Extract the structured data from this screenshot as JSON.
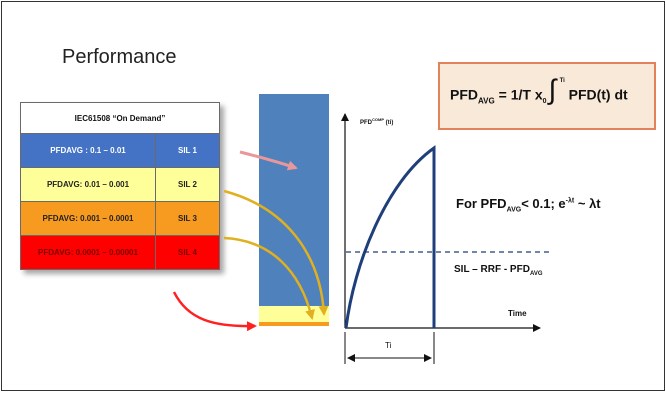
{
  "title": "Performance",
  "table": {
    "header": "IEC61508 “On Demand”",
    "rows": [
      {
        "range": "PFDAVG : 0.1 – 0.01",
        "sil": "SIL 1",
        "color": "#4472c4",
        "text_color": "#ffffff"
      },
      {
        "range": "PFDAVG: 0.01 – 0.001",
        "sil": "SIL 2",
        "color": "#ffff99",
        "text_color": "#222222"
      },
      {
        "range": "PFDAVG: 0.001 – 0.0001",
        "sil": "SIL 3",
        "color": "#f79a20",
        "text_color": "#222222"
      },
      {
        "range": "PFDAVG: 0.0001 – 0.00001",
        "sil": "SIL 4",
        "color": "#ff0000",
        "text_color": "#7a0000"
      }
    ]
  },
  "equation": {
    "lhs": "PFD",
    "lhs_sub": "AVG",
    "mid": "= 1/T x",
    "int_lower": "0",
    "int_upper": "Ti",
    "rhs": "PFD(t) dt"
  },
  "condition": {
    "pre": "For PFD",
    "sub": "AVG",
    "mid": "< 0.1; e",
    "sup": "-λt",
    "post": "~ λt"
  },
  "sil_rrf": {
    "text": "SIL – RRF - PFD",
    "sub": "AVG"
  },
  "graph": {
    "y_label": "PFD",
    "y_label_sup": "COMP",
    "y_label_suffix": " (ti)",
    "x_label": "Time",
    "interval_label": "Ti"
  },
  "colors": {
    "bar_blue": "#4f81bd",
    "bar_yellow": "#ffff99",
    "bar_orange": "#f79a20",
    "curve": "#1f3f7a",
    "arrow_pink": "#e8979a",
    "arrow_gold": "#e0b020",
    "arrow_red": "#ff2020"
  }
}
